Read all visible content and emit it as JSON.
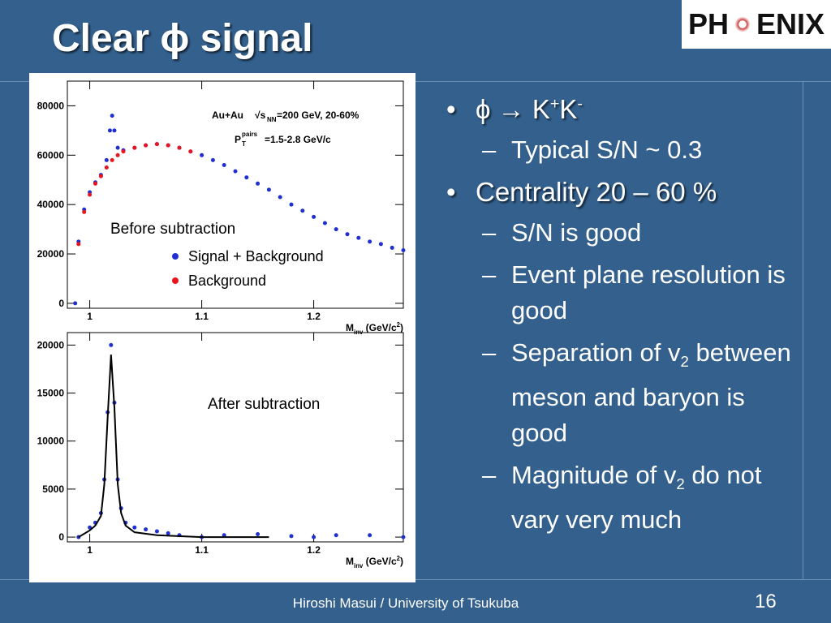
{
  "title": "Clear ϕ signal",
  "logo": {
    "left": "PH",
    "right": "ENIX"
  },
  "bullets": [
    {
      "level": 1,
      "parts": [
        {
          "text": "ϕ → K"
        },
        {
          "text": "+",
          "style": "sup"
        },
        {
          "text": "K"
        },
        {
          "text": "-",
          "style": "sup"
        }
      ]
    },
    {
      "level": 2,
      "parts": [
        {
          "text": "Typical S/N ~ 0.3"
        }
      ]
    },
    {
      "level": 1,
      "parts": [
        {
          "text": "Centrality 20 – 60 %"
        }
      ]
    },
    {
      "level": 2,
      "parts": [
        {
          "text": "S/N is good"
        }
      ]
    },
    {
      "level": 2,
      "parts": [
        {
          "text": "Event plane resolution is good"
        }
      ]
    },
    {
      "level": 2,
      "parts": [
        {
          "text": "Separation of v"
        },
        {
          "text": "2",
          "style": "sub"
        },
        {
          "text": " between meson and baryon is good"
        }
      ]
    },
    {
      "level": 2,
      "parts": [
        {
          "text": "Magnitude of v"
        },
        {
          "text": "2",
          "style": "sub"
        },
        {
          "text": " do not vary very much"
        }
      ]
    }
  ],
  "footer": {
    "author": "Hiroshi Masui / University of Tsukuba",
    "page": "16"
  },
  "chart_data": [
    {
      "type": "scatter",
      "xlim": [
        0.98,
        1.28
      ],
      "ylim": [
        -2000,
        90000
      ],
      "xticks": [
        1,
        1.1,
        1.2
      ],
      "yticks": [
        0,
        20000,
        40000,
        60000,
        80000
      ],
      "x_label": [
        {
          "text": "M"
        },
        {
          "text": "inv",
          "style": "sub"
        },
        {
          "text": " (GeV/c"
        },
        {
          "text": "2",
          "style": "sup"
        },
        {
          "text": ")"
        }
      ],
      "annotations": [
        "Au+Au",
        "√s",
        "NN",
        "=200 GeV, 20-60%",
        "P",
        "pairs",
        "T",
        "=1.5-2.8 GeV/c",
        "Before subtraction"
      ],
      "series": [
        {
          "name": "Signal + Background",
          "color": "#1f2fd0",
          "style": "points",
          "x": [
            0.987,
            0.99,
            0.995,
            1.0,
            1.005,
            1.01,
            1.015,
            1.018,
            1.02,
            1.022,
            1.025,
            1.03,
            1.04,
            1.05,
            1.06,
            1.07,
            1.08,
            1.09,
            1.1,
            1.11,
            1.12,
            1.13,
            1.14,
            1.15,
            1.16,
            1.17,
            1.18,
            1.19,
            1.2,
            1.21,
            1.22,
            1.23,
            1.24,
            1.25,
            1.26,
            1.27,
            1.28
          ],
          "values": [
            0,
            25000,
            38000,
            45000,
            49000,
            52000,
            58000,
            70000,
            76000,
            70000,
            63000,
            62000,
            63000,
            64000,
            64500,
            64000,
            63000,
            61500,
            60000,
            58000,
            56000,
            53500,
            51000,
            48500,
            46000,
            43000,
            40000,
            37500,
            35000,
            32500,
            30000,
            28000,
            26500,
            25000,
            24000,
            22500,
            21500
          ]
        },
        {
          "name": "Background",
          "color": "#e8141e",
          "style": "points",
          "x": [
            0.99,
            0.995,
            1.0,
            1.005,
            1.01,
            1.015,
            1.02,
            1.025,
            1.03,
            1.04,
            1.05,
            1.06,
            1.07,
            1.08,
            1.09
          ],
          "values": [
            24000,
            37000,
            44000,
            48500,
            51500,
            55000,
            58000,
            60000,
            61500,
            63000,
            64000,
            64500,
            64000,
            63000,
            61500
          ]
        }
      ]
    },
    {
      "type": "scatter",
      "xlim": [
        0.98,
        1.28
      ],
      "ylim": [
        -500,
        21300
      ],
      "xticks": [
        1,
        1.1,
        1.2
      ],
      "yticks": [
        0,
        5000,
        10000,
        15000,
        20000
      ],
      "x_label": [
        {
          "text": "M"
        },
        {
          "text": "inv",
          "style": "sub"
        },
        {
          "text": " (GeV/c"
        },
        {
          "text": "2",
          "style": "sup"
        },
        {
          "text": ")"
        }
      ],
      "annotations": [
        "After subtraction"
      ],
      "series": [
        {
          "color": "#1f2fd0",
          "style": "points",
          "x": [
            0.99,
            1.0,
            1.005,
            1.01,
            1.013,
            1.016,
            1.019,
            1.022,
            1.025,
            1.028,
            1.032,
            1.04,
            1.05,
            1.06,
            1.07,
            1.08,
            1.1,
            1.12,
            1.15,
            1.18,
            1.2,
            1.22,
            1.25,
            1.28
          ],
          "values": [
            0,
            1000,
            1500,
            2500,
            6000,
            13000,
            20000,
            14000,
            6000,
            3000,
            1500,
            1000,
            800,
            600,
            400,
            200,
            0,
            200,
            300,
            100,
            0,
            200,
            200,
            0
          ]
        },
        {
          "color": "#000000",
          "style": "line",
          "x": [
            0.99,
            1.0,
            1.005,
            1.01,
            1.013,
            1.016,
            1.019,
            1.022,
            1.025,
            1.028,
            1.032,
            1.04,
            1.06,
            1.1,
            1.16
          ],
          "values": [
            0,
            700,
            1200,
            2200,
            5500,
            12500,
            19000,
            13500,
            5500,
            2500,
            1200,
            500,
            200,
            0,
            0
          ]
        }
      ]
    }
  ]
}
